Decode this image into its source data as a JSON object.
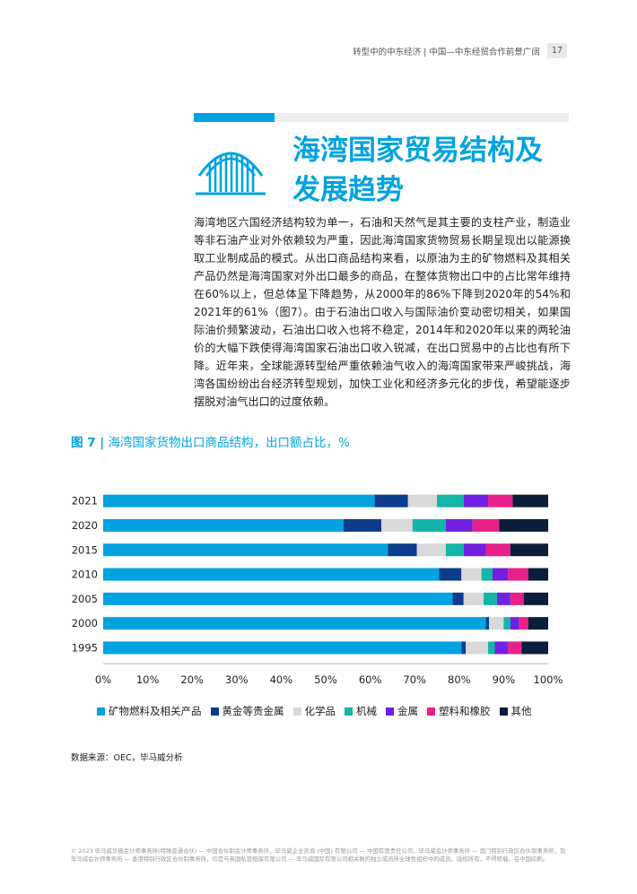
{
  "header": {
    "text": "转型中的中东经济 | 中国—中东经贸合作前景广阔",
    "page_number": "17"
  },
  "section": {
    "title_line1": "海湾国家贸易结构及",
    "title_line2": "发展趋势",
    "icon": "sunrise-bars-icon"
  },
  "body_text": "海湾地区六国经济结构较为单一，石油和天然气是其主要的支柱产业，制造业等非石油产业对外依赖较为严重，因此海湾国家货物贸易长期呈现出以能源换取工业制成品的模式。从出口商品结构来看，以原油为主的矿物燃料及其相关产品仍然是海湾国家对外出口最多的商品，在整体货物出口中的占比常年维持在60%以上，但总体呈下降趋势，从2000年的86%下降到2020年的54%和2021年的61%（图7）。由于石油出口收入与国际油价变动密切相关，如果国际油价频繁波动，石油出口收入也将不稳定，2014年和2020年以来的两轮油价的大幅下跌使得海湾国家石油出口收入锐减，在出口贸易中的占比也有所下降。近年来，全球能源转型给严重依赖油气收入的海湾国家带来严峻挑战，海湾各国纷纷出台经济转型规划，加快工业化和经济多元化的步伐，希望能逐步摆脱对油气出口的过度依赖。",
  "figure": {
    "label": "图 7 |",
    "caption": "海湾国家货物出口商品结构，出口额占比，%"
  },
  "chart_data": {
    "type": "bar",
    "orientation": "horizontal",
    "stacked": true,
    "categories": [
      "2021",
      "2020",
      "2015",
      "2010",
      "2005",
      "2000",
      "1995"
    ],
    "series": [
      {
        "name": "矿物燃料及相关产品",
        "color": "#00a3e0",
        "values": [
          61,
          54,
          64,
          75.5,
          78.5,
          86,
          80.5
        ]
      },
      {
        "name": "黄金等贵金属",
        "color": "#0c3c8c",
        "values": [
          7.5,
          8.5,
          6.5,
          5,
          2.5,
          0.7,
          1
        ]
      },
      {
        "name": "化学品",
        "color": "#d9d9d9",
        "values": [
          6.5,
          7,
          6.5,
          4.5,
          4.5,
          3.3,
          5
        ]
      },
      {
        "name": "机械",
        "color": "#13b5a6",
        "values": [
          6,
          7.5,
          4,
          2.5,
          3,
          1.5,
          1.5
        ]
      },
      {
        "name": "金属",
        "color": "#7020e0",
        "values": [
          5.5,
          6,
          5,
          3.5,
          3,
          2,
          3
        ]
      },
      {
        "name": "塑料和橡胶",
        "color": "#e8218a",
        "values": [
          5.5,
          6,
          5.5,
          4.5,
          3,
          2,
          3
        ]
      },
      {
        "name": "其他",
        "color": "#0a1e3c",
        "values": [
          8,
          11,
          8.5,
          4.5,
          5.5,
          4.5,
          6
        ]
      }
    ],
    "xlim": [
      0,
      100
    ],
    "xticks": [
      "0%",
      "10%",
      "20%",
      "30%",
      "40%",
      "50%",
      "60%",
      "70%",
      "80%",
      "90%",
      "100%"
    ],
    "legend_position": "bottom",
    "grid": false
  },
  "source": "数据来源：OEC，毕马威分析",
  "footer": "© 2023 毕马威华振会计师事务所(特殊普通合伙) — 中国合伙制会计师事务所，毕马威企业咨询 (中国) 有限公司 — 中国有限责任公司，毕马威会计师事务所 — 澳门特别行政区合伙制事务所，及毕马威会计师事务所 — 香港特别行政区合伙制事务所，均是与英国私营担保有限公司 — 毕马威国际有限公司相关联的独立成员所全球性组织中的成员。版权所有，不得转载。在中国印刷。"
}
